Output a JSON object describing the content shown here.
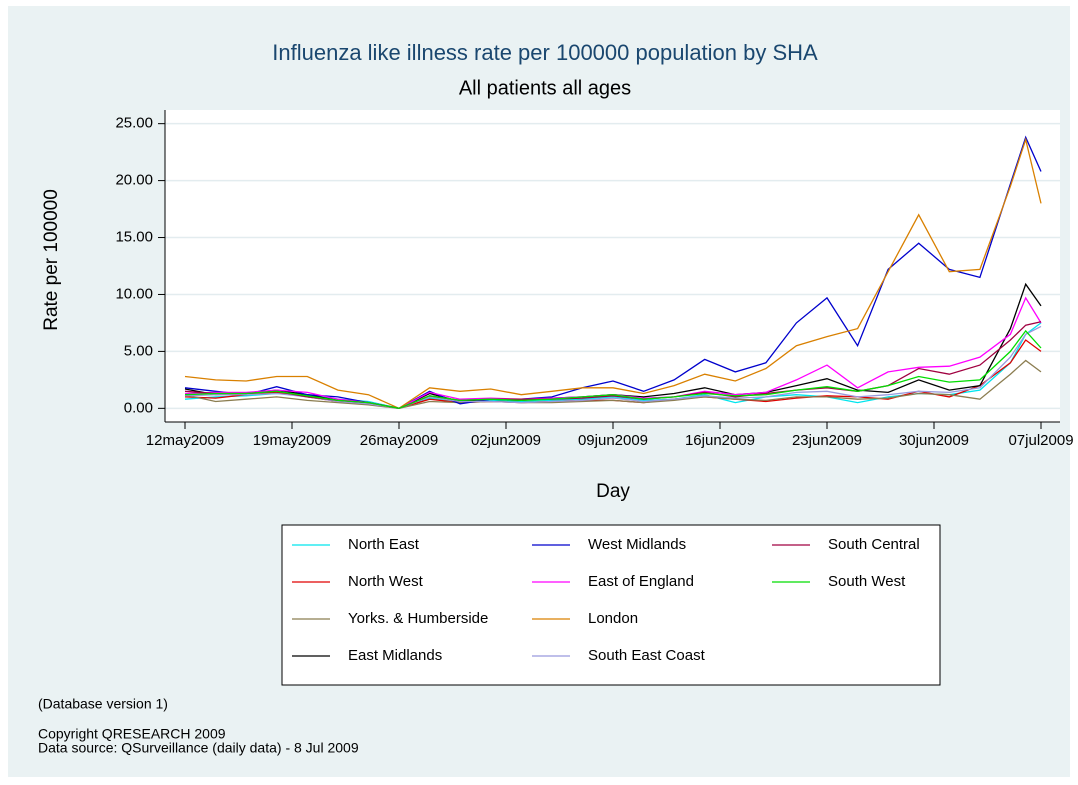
{
  "chart_data": {
    "type": "line",
    "title": "Influenza like illness rate per 100000 population by SHA",
    "subtitle": "All patients all ages",
    "x_label": "Day",
    "y_label": "Rate per 100000",
    "notes": [
      "(Database version 1)",
      "Copyright QRESEARCH 2009",
      "Data source: QSurveillance (daily data) - 8 Jul 2009"
    ],
    "x": [
      "12may2009",
      "14may2009",
      "16may2009",
      "18may2009",
      "20may2009",
      "22may2009",
      "24may2009",
      "26may2009",
      "28may2009",
      "30may2009",
      "01jun2009",
      "03jun2009",
      "05jun2009",
      "07jun2009",
      "09jun2009",
      "11jun2009",
      "13jun2009",
      "15jun2009",
      "17jun2009",
      "19jun2009",
      "21jun2009",
      "23jun2009",
      "25jun2009",
      "27jun2009",
      "29jun2009",
      "01jul2009",
      "03jul2009",
      "05jul2009",
      "06jul2009",
      "07jul2009"
    ],
    "xticks": [
      "12may2009",
      "19may2009",
      "26may2009",
      "02jun2009",
      "09jun2009",
      "16jun2009",
      "23jun2009",
      "30jun2009",
      "07jul2009"
    ],
    "ylim": [
      -1.2,
      26.2
    ],
    "yticks": [
      {
        "value": 0,
        "label": "0.00"
      },
      {
        "value": 5,
        "label": "5.00"
      },
      {
        "value": 10,
        "label": "10.00"
      },
      {
        "value": 15,
        "label": "15.00"
      },
      {
        "value": 20,
        "label": "20.00"
      },
      {
        "value": 25,
        "label": "25.00"
      }
    ],
    "grid": true,
    "legend_position": "bottom",
    "series": [
      {
        "name": "North East",
        "color": "#00e5ee",
        "values": [
          0.8,
          1.0,
          1.1,
          1.3,
          1.2,
          0.8,
          0.6,
          0,
          0.9,
          0.6,
          0.7,
          0.6,
          0.7,
          0.8,
          1.0,
          0.7,
          0.8,
          1.2,
          0.5,
          1.0,
          1.2,
          1.0,
          0.5,
          1.0,
          1.3,
          1.2,
          1.6,
          4.0,
          6.5,
          7.5
        ]
      },
      {
        "name": "North West",
        "color": "#e00000",
        "values": [
          1.0,
          0.9,
          1.2,
          1.4,
          1.0,
          0.6,
          0.4,
          0,
          0.8,
          0.5,
          0.6,
          0.5,
          0.6,
          0.7,
          0.7,
          0.5,
          0.8,
          1.0,
          0.8,
          0.6,
          0.9,
          1.1,
          1.0,
          0.8,
          1.5,
          1.0,
          2.0,
          4.0,
          6.0,
          5.0
        ]
      },
      {
        "name": "Yorks. & Humberside",
        "color": "#8b7d50",
        "values": [
          1.2,
          0.6,
          0.8,
          1.0,
          0.7,
          0.5,
          0.3,
          0,
          0.6,
          0.5,
          0.6,
          0.5,
          0.5,
          0.6,
          0.7,
          0.5,
          0.7,
          1.0,
          0.8,
          0.7,
          1.0,
          1.0,
          0.8,
          0.9,
          1.3,
          1.2,
          0.8,
          3.0,
          4.2,
          3.2
        ]
      },
      {
        "name": "East Midlands",
        "color": "#000000",
        "values": [
          1.7,
          1.2,
          1.3,
          1.6,
          1.2,
          0.7,
          0.5,
          0,
          1.3,
          0.6,
          0.8,
          0.7,
          0.9,
          1.0,
          1.2,
          1.0,
          1.3,
          1.8,
          1.2,
          1.4,
          2.0,
          2.6,
          1.6,
          1.4,
          2.5,
          1.6,
          2.0,
          7.0,
          10.9,
          9.0
        ]
      },
      {
        "name": "West Midlands",
        "color": "#0000cc",
        "values": [
          1.8,
          1.5,
          1.2,
          1.9,
          1.2,
          1.0,
          0.5,
          0,
          1.5,
          0.4,
          0.8,
          0.8,
          1.0,
          1.8,
          2.4,
          1.5,
          2.5,
          4.3,
          3.2,
          4.0,
          7.5,
          9.7,
          5.5,
          12.2,
          14.5,
          12.2,
          11.5,
          19.7,
          23.8,
          20.8
        ]
      },
      {
        "name": "East of England",
        "color": "#ff00ff",
        "values": [
          1.3,
          1.4,
          1.4,
          1.6,
          1.4,
          0.8,
          0.5,
          0,
          1.4,
          0.8,
          0.9,
          0.8,
          0.9,
          1.0,
          1.2,
          0.9,
          1.0,
          1.5,
          1.2,
          1.4,
          2.5,
          3.8,
          1.8,
          3.2,
          3.6,
          3.7,
          4.5,
          6.5,
          9.7,
          7.5
        ]
      },
      {
        "name": "London",
        "color": "#d98000",
        "values": [
          2.8,
          2.5,
          2.4,
          2.8,
          2.8,
          1.6,
          1.2,
          0,
          1.8,
          1.5,
          1.7,
          1.2,
          1.5,
          1.8,
          1.8,
          1.3,
          2.0,
          3.0,
          2.4,
          3.5,
          5.5,
          6.3,
          7.0,
          12.0,
          17.0,
          12.0,
          12.2,
          19.5,
          23.6,
          18.0
        ]
      },
      {
        "name": "South East Coast",
        "color": "#9999dd",
        "values": [
          1.1,
          1.2,
          1.2,
          1.3,
          1.0,
          0.6,
          0.4,
          0,
          1.0,
          0.6,
          0.6,
          0.5,
          0.6,
          0.7,
          0.9,
          0.6,
          0.8,
          1.1,
          0.9,
          1.0,
          1.4,
          1.5,
          1.0,
          1.2,
          1.5,
          1.4,
          1.8,
          4.5,
          6.5,
          7.2
        ]
      },
      {
        "name": "South Central",
        "color": "#a00040",
        "values": [
          1.5,
          1.3,
          1.3,
          1.5,
          1.0,
          0.7,
          0.5,
          0,
          1.1,
          0.7,
          0.8,
          0.8,
          0.8,
          0.9,
          1.1,
          0.8,
          1.0,
          1.4,
          1.0,
          1.3,
          1.6,
          1.8,
          1.5,
          2.0,
          3.5,
          3.0,
          3.8,
          6.0,
          7.3,
          7.6
        ]
      },
      {
        "name": "South West",
        "color": "#00dd00",
        "values": [
          1.2,
          1.3,
          1.3,
          1.5,
          1.1,
          0.7,
          0.5,
          0,
          1.1,
          0.7,
          0.8,
          0.7,
          0.8,
          1.0,
          1.2,
          0.8,
          1.0,
          1.3,
          1.1,
          1.2,
          1.6,
          1.9,
          1.5,
          2.0,
          2.8,
          2.3,
          2.5,
          5.0,
          6.8,
          5.3
        ]
      }
    ]
  }
}
